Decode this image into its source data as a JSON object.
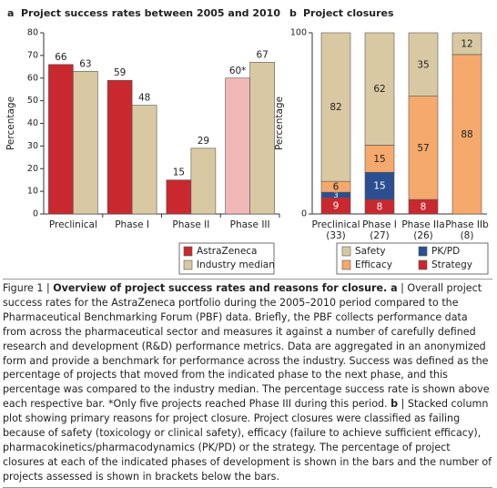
{
  "chart_data": [
    {
      "type": "bar",
      "panel": "a",
      "title": "Project success rates between 2005 and 2010",
      "ylabel": "Percentage",
      "categories": [
        "Preclinical",
        "Phase I",
        "Phase II",
        "Phase III"
      ],
      "series": [
        {
          "name": "AstraZeneca",
          "color": "#c9282f",
          "point_colors": [
            "#c9282f",
            "#c9282f",
            "#c9282f",
            "#f2b8b8"
          ],
          "values": [
            66,
            59,
            15,
            60
          ],
          "value_labels": [
            "66",
            "59",
            "15",
            "60*"
          ]
        },
        {
          "name": "Industry median",
          "color": "#d9c9a3",
          "values": [
            63,
            48,
            29,
            67
          ]
        }
      ],
      "ylim": [
        0,
        80
      ],
      "yticks": [
        0,
        10,
        20,
        30,
        40,
        50,
        60,
        70,
        80
      ],
      "grid": false,
      "legend": "bottom-right"
    },
    {
      "type": "stacked-bar",
      "panel": "b",
      "title": "Project closures",
      "ylabel": "Percentage",
      "categories": [
        "Preclinical",
        "Phase I",
        "Phase IIa",
        "Phase IIb"
      ],
      "category_notes": [
        "(33)",
        "(27)",
        "(26)",
        "(8)"
      ],
      "series": [
        {
          "name": "Strategy",
          "color": "#c9282f",
          "values": [
            9,
            8,
            8,
            null
          ]
        },
        {
          "name": "PK/PD",
          "color": "#2b4f90",
          "values": [
            3,
            15,
            null,
            null
          ]
        },
        {
          "name": "Efficacy",
          "color": "#f6a96c",
          "values": [
            6,
            15,
            57,
            88
          ]
        },
        {
          "name": "Safety",
          "color": "#d9c9a3",
          "values": [
            82,
            62,
            35,
            12
          ]
        }
      ],
      "ylim": [
        0,
        100
      ],
      "yticks": [
        0,
        100
      ],
      "grid": false,
      "legend": "bottom"
    }
  ],
  "caption": [
    {
      "text": "Figure 1 | ",
      "bold": false
    },
    {
      "text": "Overview of project success rates and reasons for closure.",
      "bold": true
    },
    {
      "text": " a",
      "bold": true
    },
    {
      "text": " | Overall project success rates for the AstraZeneca portfolio during the 2005–2010 period compared to the Pharmaceutical Benchmarking Forum (PBF) data. Briefly, the PBF collects performance data from across the pharmaceutical sector and measures it against a number of carefully defined research and development (R&D) performance metrics. Data are aggregated in an anonymized form and provide a benchmark for performance across the industry. Success was defined as the percentage of projects that moved from the indicated phase to the next phase, and this percentage was compared to the industry median. The percentage success rate is shown above each respective bar. *Only five projects reached Phase III during this period. ",
      "bold": false
    },
    {
      "text": "b",
      "bold": true
    },
    {
      "text": " | Stacked column plot showing primary reasons for project closure. Project closures were classified as failing because of safety (toxicology or clinical safety), efficacy (failure to achieve sufficient efficacy), pharmacokinetics/pharmacodynamics (PK/PD) or the strategy. The percentage of project closures at each of the indicated phases of development is shown in the bars and the number of projects assessed is shown in brackets below the bars.",
      "bold": false
    }
  ]
}
